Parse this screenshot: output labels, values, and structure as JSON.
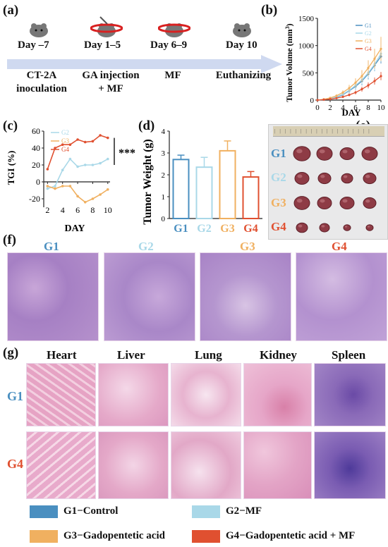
{
  "panels": {
    "a": "(a)",
    "b": "(b)",
    "c": "(c)",
    "d": "(d)",
    "e": "(e)",
    "f": "(f)",
    "g": "(g)"
  },
  "timeline": {
    "days": [
      "Day –7",
      "Day 1–5",
      "Day 6–9",
      "Day 10"
    ],
    "actions": [
      [
        "CT-2A",
        "inoculation"
      ],
      [
        "GA injection",
        "+ MF"
      ],
      [
        "MF"
      ],
      [
        "Euthanizing"
      ]
    ]
  },
  "groups": [
    "G1",
    "G2",
    "G3",
    "G4"
  ],
  "colors": {
    "G1": "#4a8fc0",
    "G2": "#a9d8e8",
    "G3": "#f0b060",
    "G4": "#e05030"
  },
  "chart_b": {
    "ylabel_main": "Tumor Volume (mm",
    "ylabel_sup": "3",
    "ylabel_close": ")",
    "xlabel": "DAY",
    "yticks": [
      "0",
      "500",
      "1000",
      "1500"
    ],
    "xticks": [
      "0",
      "2",
      "4",
      "6",
      "8",
      "10"
    ]
  },
  "chart_c": {
    "ylabel": "TGI (%)",
    "xlabel": "DAY",
    "yticks": [
      "60",
      "40",
      "20",
      "0",
      "-20"
    ],
    "xticks": [
      "2",
      "4",
      "6",
      "8",
      "10"
    ],
    "significance": "***"
  },
  "chart_d": {
    "ylabel": "Tumor Weight (g)",
    "yticks": [
      "0",
      "1",
      "2",
      "3",
      "4"
    ]
  },
  "chart_data": [
    {
      "type": "line",
      "x": [
        0,
        1,
        2,
        3,
        4,
        5,
        6,
        7,
        8,
        9,
        10
      ],
      "series": [
        {
          "name": "G1",
          "values": [
            0,
            10,
            25,
            50,
            100,
            170,
            250,
            350,
            480,
            640,
            800
          ],
          "errors": [
            0,
            5,
            10,
            20,
            30,
            45,
            60,
            80,
            100,
            110,
            130
          ]
        },
        {
          "name": "G2",
          "values": [
            0,
            10,
            30,
            60,
            110,
            180,
            270,
            370,
            500,
            660,
            850
          ],
          "errors": [
            0,
            5,
            10,
            20,
            30,
            45,
            60,
            80,
            100,
            120,
            140
          ]
        },
        {
          "name": "G3",
          "values": [
            0,
            15,
            40,
            80,
            140,
            220,
            320,
            440,
            590,
            760,
            940
          ],
          "errors": [
            0,
            5,
            15,
            25,
            40,
            60,
            80,
            110,
            140,
            180,
            220
          ]
        },
        {
          "name": "G4",
          "values": [
            0,
            8,
            18,
            35,
            60,
            95,
            140,
            200,
            270,
            350,
            440
          ],
          "errors": [
            0,
            3,
            6,
            10,
            15,
            25,
            35,
            45,
            55,
            65,
            75
          ]
        }
      ],
      "xlabel": "DAY",
      "ylabel": "Tumor Volume (mm3)",
      "ylim": [
        0,
        1500
      ],
      "xlim": [
        0,
        10
      ]
    },
    {
      "type": "line",
      "x": [
        2,
        3,
        4,
        5,
        6,
        7,
        8,
        9,
        10
      ],
      "series": [
        {
          "name": "G2",
          "values": [
            -8,
            -5,
            14,
            27,
            18,
            20,
            20,
            22,
            27
          ]
        },
        {
          "name": "G3",
          "values": [
            -5,
            -8,
            -5,
            -5,
            -17,
            -24,
            -20,
            -15,
            -9
          ]
        },
        {
          "name": "G4",
          "values": [
            15,
            40,
            44,
            44,
            50,
            47,
            48,
            55,
            52
          ]
        }
      ],
      "xlabel": "DAY",
      "ylabel": "TGI (%)",
      "ylim": [
        -30,
        60
      ]
    },
    {
      "type": "bar",
      "categories": [
        "G1",
        "G2",
        "G3",
        "G4"
      ],
      "values": [
        2.7,
        2.35,
        3.1,
        1.9
      ],
      "errors": [
        0.2,
        0.45,
        0.45,
        0.25
      ],
      "ylabel": "Tumor Weight (g)",
      "ylim": [
        0,
        4
      ]
    }
  ],
  "histology": {
    "f_titles": [
      "G1",
      "G2",
      "G3",
      "G4"
    ],
    "g_columns": [
      "Heart",
      "Liver",
      "Lung",
      "Kidney",
      "Spleen"
    ],
    "g_rows": [
      "G1",
      "G4"
    ]
  },
  "legend": [
    {
      "label": "G1−Control",
      "color": "#4a8fc0"
    },
    {
      "label": "G2−MF",
      "color": "#a9d8e8"
    },
    {
      "label": "G3−Gadopentetic acid",
      "color": "#f0b060"
    },
    {
      "label": "G4−Gadopentetic acid + MF",
      "color": "#e05030"
    }
  ]
}
